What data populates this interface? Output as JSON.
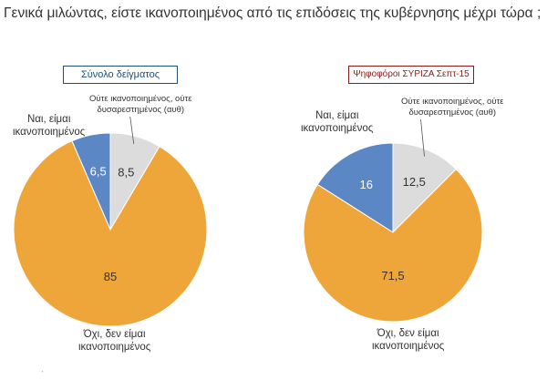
{
  "title": "Γενικά μιλώντας, είστε ικανοποιημένος από τις επιδόσεις της κυβέρνησης μέχρι τώρα ;",
  "colors": {
    "satisfied": "#5b87c5",
    "neutral": "#dcdcdc",
    "not_satisfied": "#eea53a"
  },
  "categories": {
    "satisfied": "Ναι, είμαι ικανοποιημένος",
    "neutral": "Ούτε ικανοποιημένος, ούτε δυσαρεστημένος (αυθ)",
    "not_satisfied": "Όχι, δεν είμαι ικανοποιημένος"
  },
  "chart_data": [
    {
      "type": "pie",
      "title": "Σύνολο δείγματος",
      "labels": [
        "Ναι, είμαι ικανοποιημένος",
        "Ούτε ικανοποιημένος, ούτε δυσαρεστημένος (αυθ)",
        "Όχι, δεν είμαι ικανοποιημένος"
      ],
      "values": [
        6.5,
        8.5,
        85
      ],
      "value_labels": [
        "6,5",
        "8,5",
        "85"
      ]
    },
    {
      "type": "pie",
      "title": "Ψηφοφόροι ΣΥΡΙΖΑ Σεπτ-15",
      "labels": [
        "Ναι, είμαι ικανοποιημένος",
        "Ούτε ικανοποιημένος, ούτε δυσαρεστημένος (αυθ)",
        "Όχι, δεν είμαι ικανοποιημένος"
      ],
      "values": [
        16,
        12.5,
        71.5
      ],
      "value_labels": [
        "16",
        "12,5",
        "71,5"
      ]
    }
  ],
  "left_annotations": {
    "satisfied": [
      "Ναι, είμαι",
      "ικανοποιημένος"
    ],
    "neutral": [
      "Ούτε ικανοποιημένος, ούτε",
      "δυσαρεστημένος (αυθ)"
    ],
    "not_satisfied": [
      "Όχι, δεν είμαι",
      "ικανοποιημένος"
    ]
  },
  "right_annotations": {
    "satisfied": [
      "Ναι, είμαι",
      "ικανοποιημένος"
    ],
    "neutral": [
      "Ούτε ικανοποιημένος, ούτε",
      "δυσαρεστημένος (αυθ)"
    ],
    "not_satisfied": [
      "Όχι, δεν είμαι",
      "ικανοποιημένος"
    ]
  }
}
